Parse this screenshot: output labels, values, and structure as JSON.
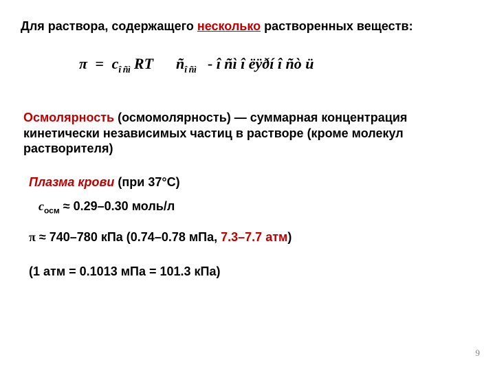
{
  "title_pre": "Для раствора, содержащего ",
  "title_em": "несколько",
  "title_post": " растворенных веществ:",
  "formula": {
    "pi": "π",
    "eq": "=",
    "c": "c",
    "sub1": "î ñì",
    "rt": " RT",
    "ntilde": "ñ",
    "sub2": "î ñì",
    "dash": " - ",
    "garble": "î ñì î ëÿðí î ñò ü"
  },
  "osm_def_em": "Осмолярность",
  "osm_def_rest": " (осмомолярность) — суммарная концентрация кинетически независимых частиц в растворе (кроме молекул растворителя)",
  "plasma_em": "Плазма крови",
  "plasma_rest": " (при 37°С)",
  "cosm_var": "c",
  "cosm_sub": "осм",
  "cosm_rest": " ≈ 0.29–0.30 моль/л",
  "pi_sym": "π",
  "pi_pre": " ≈ 740–780 кПа (0.74–0.78 мПа, ",
  "pi_red": "7.3–7.7 атм",
  "pi_post": ")",
  "atm_conv": "(1 атм = 0.1013 мПа = 101.3 кПа)",
  "page_num": "9",
  "colors": {
    "text": "#000000",
    "accent": "#c00000",
    "page_num": "#7f7f7f",
    "background": "#ffffff"
  }
}
